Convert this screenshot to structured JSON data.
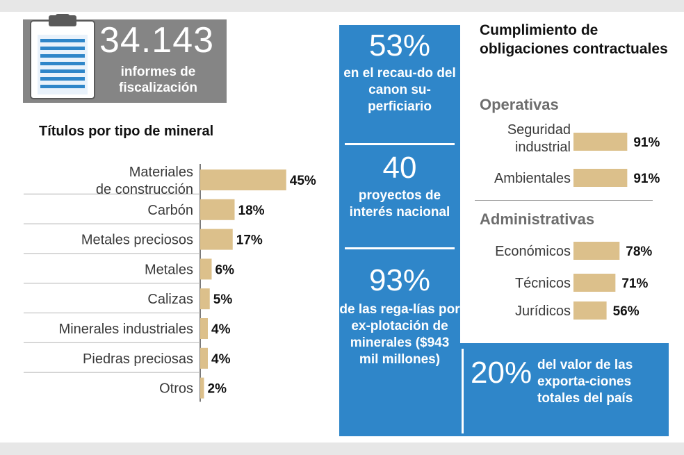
{
  "header": {
    "number": "34.143",
    "label": "informes de fiscalización"
  },
  "middle": {
    "items": [
      {
        "value": "53%",
        "text": "en el recau-do del canon su-perficiario"
      },
      {
        "value": "40",
        "text": "proyectos de interés nacional"
      },
      {
        "value": "93%",
        "text": "de las rega-lías por ex-plotación de minerales ($943 mil millones)"
      }
    ]
  },
  "exports": {
    "value": "20%",
    "text": "del valor de las exporta-ciones totales del país"
  },
  "colors": {
    "bar": "#dcc08b",
    "blue": "#2f86c9",
    "header_gray": "#858585",
    "band": "#e7e7e7"
  },
  "icons": {
    "clipboard": "clipboard-icon"
  },
  "chart_data": [
    {
      "type": "bar",
      "orientation": "horizontal",
      "title": "Títulos por tipo de mineral",
      "categories": [
        "Materiales de construcción",
        "Carbón",
        "Metales preciosos",
        "Metales",
        "Calizas",
        "Minerales industriales",
        "Piedras preciosas",
        "Otros"
      ],
      "values": [
        45,
        18,
        17,
        6,
        5,
        4,
        4,
        2
      ],
      "value_labels": [
        "45%",
        "18%",
        "17%",
        "6%",
        "5%",
        "4%",
        "4%",
        "2%"
      ],
      "unit": "%"
    },
    {
      "type": "bar",
      "orientation": "horizontal",
      "title": "Cumplimiento de obligaciones contractuales",
      "groups": [
        {
          "name": "Operativas",
          "categories": [
            "Seguridad industrial",
            "Ambientales"
          ],
          "values": [
            91,
            91
          ],
          "value_labels": [
            "91%",
            "91%"
          ]
        },
        {
          "name": "Administrativas",
          "categories": [
            "Económicos",
            "Técnicos",
            "Jurídicos"
          ],
          "values": [
            78,
            71,
            56
          ],
          "value_labels": [
            "78%",
            "71%",
            "56%"
          ]
        }
      ],
      "unit": "%"
    }
  ]
}
